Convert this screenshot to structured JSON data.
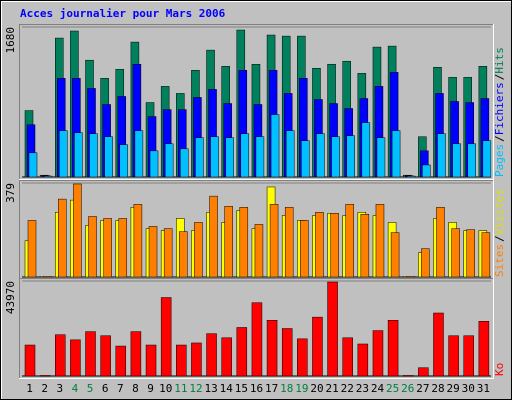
{
  "chart_data": {
    "type": "bar",
    "title": "Acces journalier pour Mars 2006",
    "categories": [
      "1",
      "2",
      "3",
      "4",
      "5",
      "6",
      "7",
      "8",
      "9",
      "10",
      "11",
      "12",
      "13",
      "14",
      "15",
      "16",
      "17",
      "18",
      "19",
      "20",
      "21",
      "22",
      "23",
      "24",
      "25",
      "26",
      "27",
      "28",
      "29",
      "30",
      "31"
    ],
    "category_colors": [
      "#000000",
      "#000000",
      "#000000",
      "#008040",
      "#008040",
      "#000000",
      "#000000",
      "#000000",
      "#000000",
      "#000000",
      "#008040",
      "#008040",
      "#000000",
      "#000000",
      "#000000",
      "#000000",
      "#000000",
      "#008040",
      "#008040",
      "#000000",
      "#000000",
      "#000000",
      "#000000",
      "#000000",
      "#008040",
      "#008040",
      "#000000",
      "#000000",
      "#000000",
      "#000000",
      "#000000"
    ],
    "legend_separator": "/",
    "panels": [
      {
        "ylim": [
          0,
          1680
        ],
        "yticks": [
          1680
        ],
        "series": [
          {
            "name": "Hits",
            "color": "#00805c",
            "values": [
              744,
              20,
              1556,
              1635,
              1308,
              1105,
              1206,
              1511,
              834,
              1015,
              936,
              1195,
              1421,
              1240,
              1646,
              1263,
              1590,
              1578,
              1578,
              1218,
              1263,
              1297,
              1161,
              1455,
              1466,
              20,
              451,
              1229,
              1116,
              1116,
              1240
            ]
          },
          {
            "name": "Fichiers",
            "color": "#0000ff",
            "values": [
              586,
              15,
              1105,
              1105,
              992,
              812,
              902,
              1263,
              677,
              755,
              755,
              891,
              981,
              823,
              1195,
              812,
              1195,
              936,
              1105,
              868,
              823,
              767,
              879,
              1015,
              1172,
              15,
              293,
              936,
              846,
              834,
              879
            ]
          },
          {
            "name": "Pages",
            "color": "#00c0ff",
            "values": [
              271,
              10,
              519,
              496,
              485,
              451,
              361,
              519,
              293,
              372,
              316,
              440,
              451,
              440,
              485,
              451,
              699,
              519,
              406,
              485,
              451,
              462,
              609,
              440,
              519,
              10,
              135,
              485,
              372,
              372,
              406
            ]
          }
        ]
      },
      {
        "ylim": [
          0,
          379
        ],
        "yticks": [
          379
        ],
        "series": [
          {
            "name": "Visites",
            "color": "#ffff00",
            "values": [
              146,
              3,
              261,
              310,
              208,
              228,
              228,
              281,
              195,
              187,
              236,
              187,
              261,
              220,
              269,
              195,
              363,
              248,
              228,
              248,
              257,
              248,
              261,
              248,
              220,
              3,
              98,
              236,
              220,
              187,
              187
            ]
          },
          {
            "name": "Sites",
            "color": "#ff8000",
            "values": [
              228,
              3,
              314,
              375,
              244,
              236,
              236,
              293,
              204,
              195,
              183,
              220,
              326,
              285,
              281,
              212,
              293,
              281,
              228,
              261,
              257,
              293,
              253,
              293,
              179,
              3,
              114,
              281,
              195,
              191,
              179
            ]
          }
        ]
      },
      {
        "ylim": [
          0,
          43970
        ],
        "yticks": [
          43970
        ],
        "series": [
          {
            "name": "Ko",
            "color": "#ff0000",
            "values": [
              14338,
              300,
              19117,
              16728,
              20551,
              18639,
              13860,
              20551,
              14338,
              36320,
              14338,
              15294,
              19595,
              17684,
              22462,
              33931,
              25808,
              21985,
              17206,
              27242,
              43492,
              17684,
              14816,
              21029,
              25808,
              300,
              3823,
              29153,
              18639,
              18639,
              25330
            ]
          }
        ]
      }
    ]
  }
}
